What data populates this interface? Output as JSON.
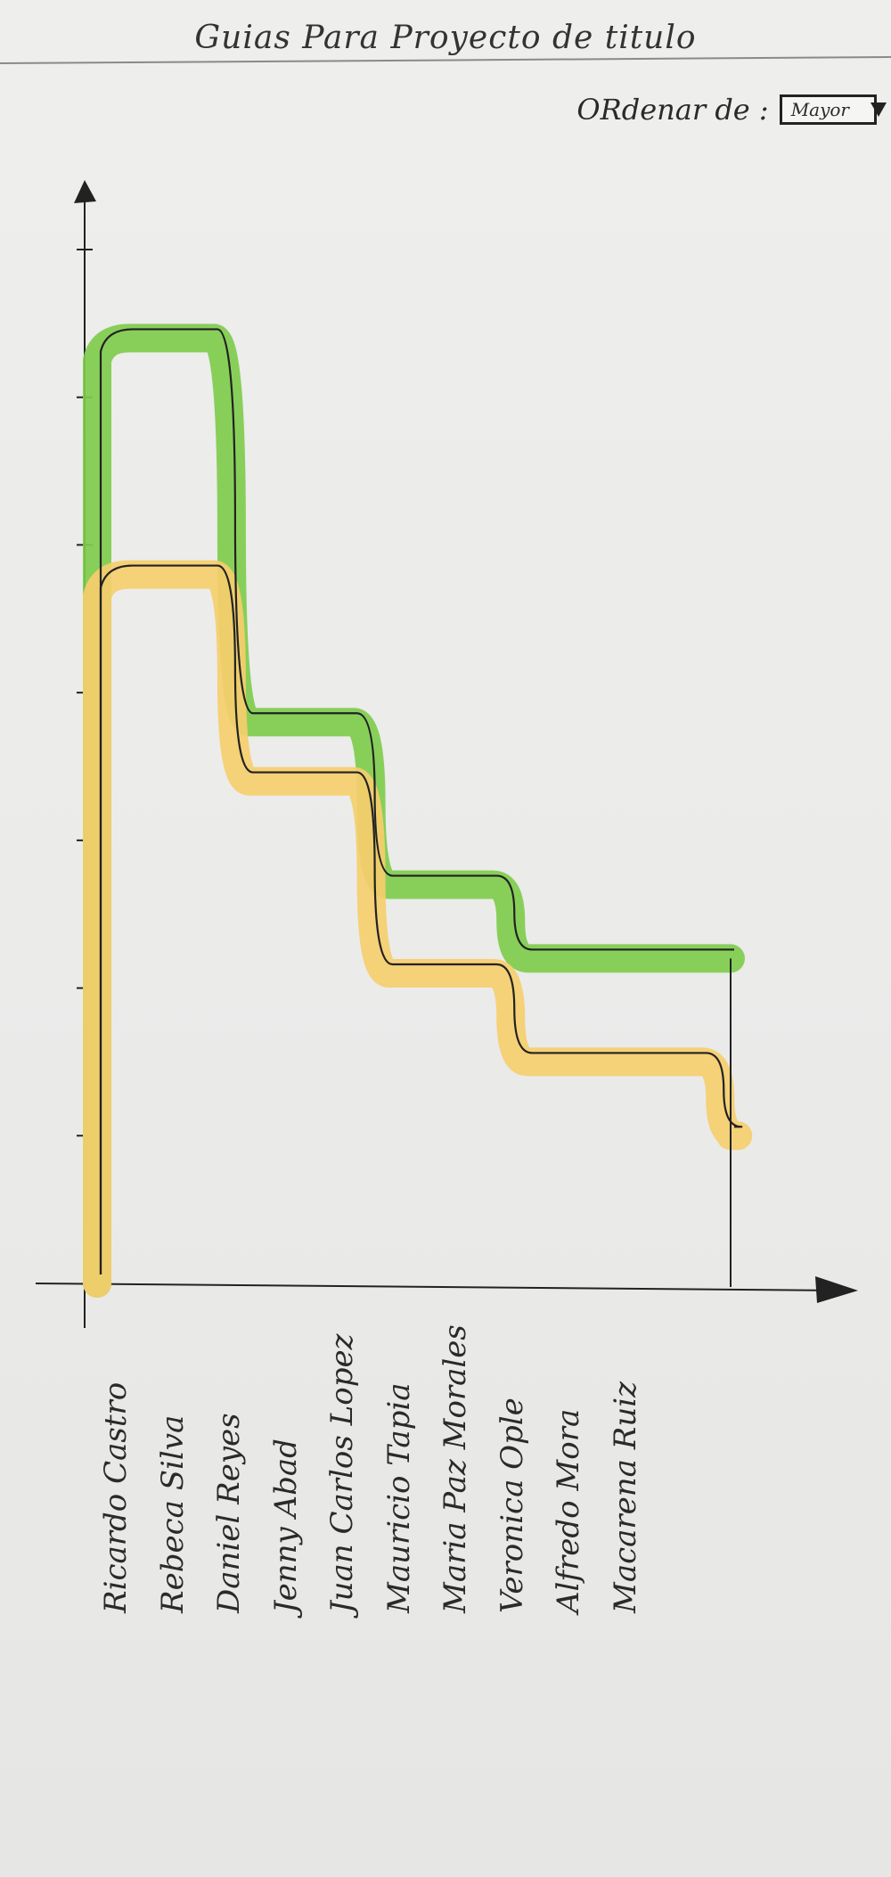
{
  "title": "Guias Para Proyecto de titulo",
  "order": {
    "label": "ORdenar de :",
    "selected": "Mayor"
  },
  "chart_data": {
    "type": "line",
    "categories": [
      "Ricardo Castro",
      "Rebeca Silva",
      "Daniel Reyes",
      "Jenny Abad",
      "Juan Carlos Lopez",
      "Mauricio Tapia",
      "Maria Paz Morales",
      "Veronica Ople",
      "Alfredo Mora",
      "Macarena Ruiz"
    ],
    "series": [
      {
        "color": "#7fcc4d",
        "values": [
          6.4,
          6.4,
          3.8,
          3.8,
          2.7,
          2.7,
          2.2,
          2.2,
          2.2,
          2.2
        ]
      },
      {
        "color": "#f5ce6c",
        "values": [
          4.8,
          4.8,
          3.4,
          3.4,
          2.1,
          2.1,
          1.5,
          1.5,
          1.5,
          1.0
        ]
      }
    ],
    "y_ticks": 7,
    "ylim": [
      0,
      7
    ]
  },
  "colors": {
    "ink": "#222222",
    "green": "#7fcc4d",
    "yellow": "#f5ce6c"
  }
}
